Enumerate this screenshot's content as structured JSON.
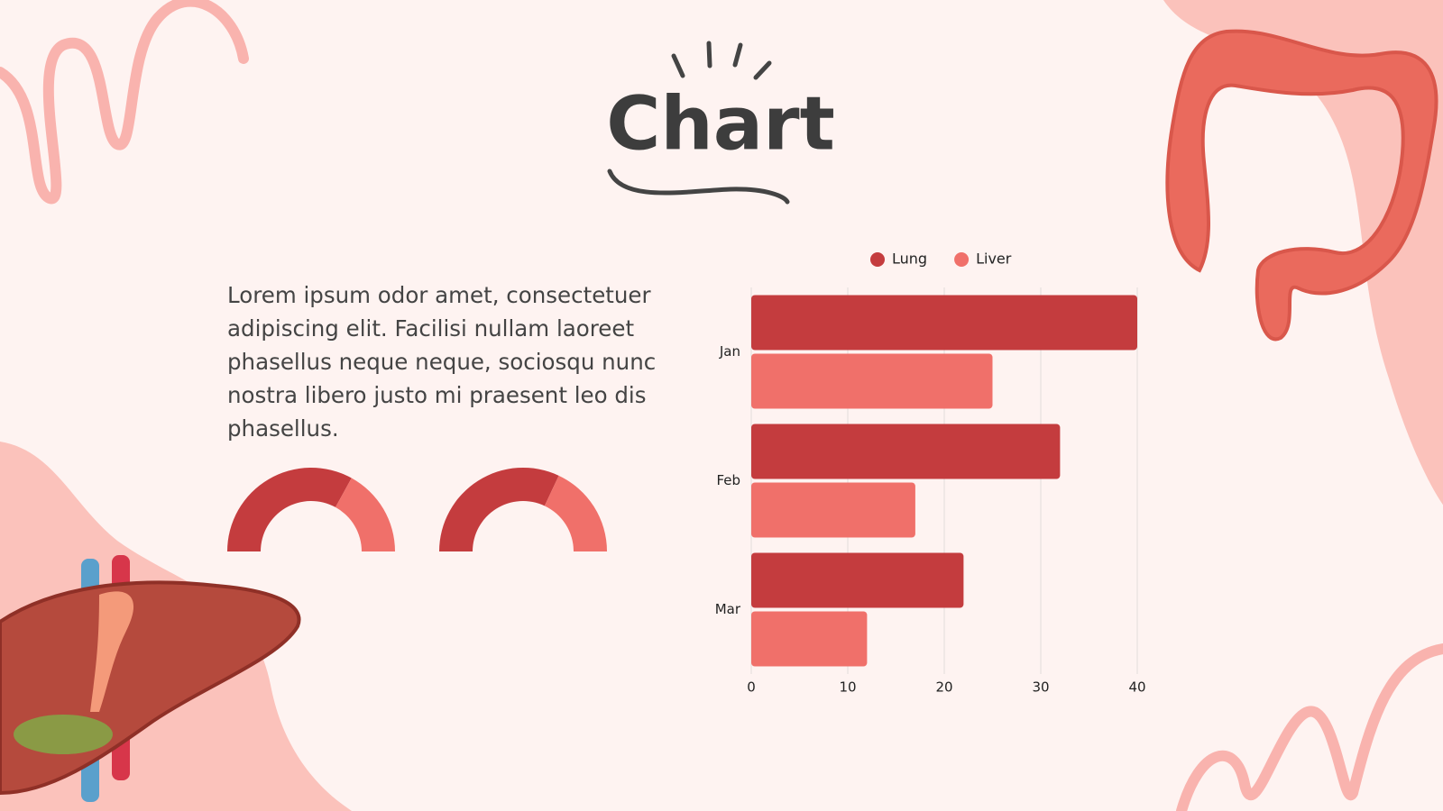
{
  "title": "Chart",
  "body": "Lorem ipsum odor amet, consectetuer adipiscing elit. Facilisi nullam laoreet phasellus neque neque, sociosqu nunc nostra libero justo mi praesent leo dis phasellus.",
  "chart_data": [
    {
      "type": "hbar",
      "categories": [
        "Jan",
        "Feb",
        "Mar"
      ],
      "series": [
        {
          "name": "Lung",
          "color": "#c43c3e",
          "values": [
            40,
            32,
            22
          ]
        },
        {
          "name": "Liver",
          "color": "#f0706a",
          "values": [
            25,
            17,
            12
          ]
        }
      ],
      "xlim": [
        0,
        40
      ],
      "xticks": [
        0,
        10,
        20,
        30,
        40
      ],
      "grid": true,
      "legend": "top"
    },
    {
      "type": "gauge",
      "values": [
        66,
        34
      ],
      "colors": [
        "#c43c3e",
        "#f0706a"
      ]
    },
    {
      "type": "gauge",
      "values": [
        64,
        36
      ],
      "colors": [
        "#c43c3e",
        "#f0706a"
      ]
    }
  ]
}
